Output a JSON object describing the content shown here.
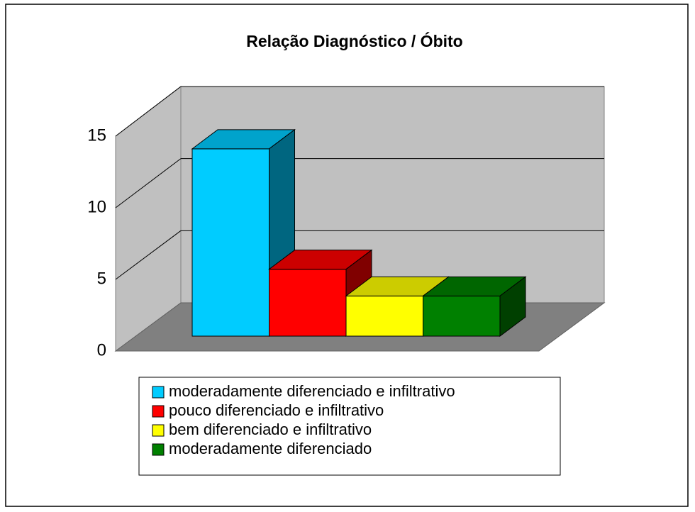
{
  "chart_data": {
    "type": "bar3d",
    "title": "Relação Diagnóstico / Óbito",
    "series": [
      {
        "name": "moderadamente diferenciado e infiltrativo",
        "color": "#00ccff",
        "values": [
          14
        ]
      },
      {
        "name": "pouco diferenciado e infiltrativo",
        "color": "#ff0000",
        "values": [
          5
        ]
      },
      {
        "name": "bem diferenciado e infiltrativo",
        "color": "#ffff00",
        "values": [
          3
        ]
      },
      {
        "name": "moderadamente diferenciado",
        "color": "#008000",
        "values": [
          3
        ]
      }
    ],
    "ylim": [
      0,
      15
    ],
    "yticks": [
      0,
      5,
      10,
      15
    ],
    "grid": true,
    "legend": "bottom"
  }
}
